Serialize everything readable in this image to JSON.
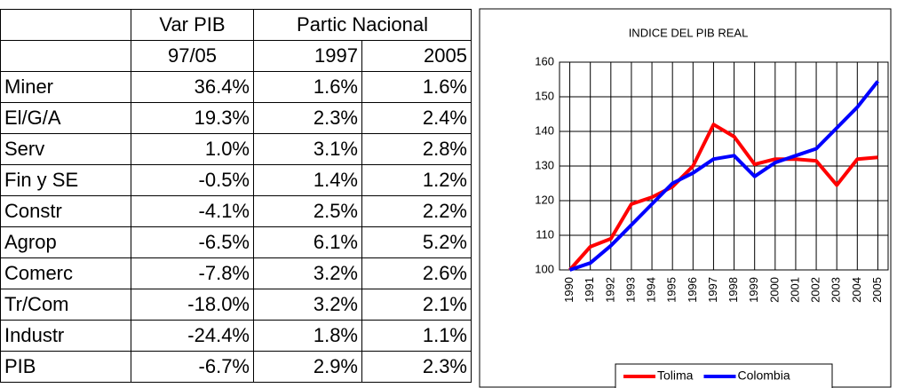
{
  "table": {
    "col_var": "Var PIB",
    "col_partic": "Partic Nacional",
    "sub": [
      "97/05",
      "1997",
      "2005"
    ],
    "rows": [
      [
        "Miner",
        "36.4%",
        "1.6%",
        "1.6%"
      ],
      [
        "El/G/A",
        "19.3%",
        "2.3%",
        "2.4%"
      ],
      [
        "Serv",
        "1.0%",
        "3.1%",
        "2.8%"
      ],
      [
        "Fin y SE",
        "-0.5%",
        "1.4%",
        "1.2%"
      ],
      [
        "Constr",
        "-4.1%",
        "2.5%",
        "2.2%"
      ],
      [
        "Agrop",
        "-6.5%",
        "6.1%",
        "5.2%"
      ],
      [
        "Comerc",
        "-7.8%",
        "3.2%",
        "2.6%"
      ],
      [
        "Tr/Com",
        "-18.0%",
        "3.2%",
        "2.1%"
      ],
      [
        "Industr",
        "-24.4%",
        "1.8%",
        "1.1%"
      ],
      [
        "PIB",
        "-6.7%",
        "2.9%",
        "2.3%"
      ]
    ]
  },
  "chart_data": {
    "type": "line",
    "title": "INDICE DEL PIB REAL",
    "categories": [
      "1990",
      "1991",
      "1992",
      "1993",
      "1994",
      "1995",
      "1996",
      "1997",
      "1998",
      "1999",
      "2000",
      "2001",
      "2002",
      "2003",
      "2004",
      "2005"
    ],
    "series": [
      {
        "name": "Tolima",
        "color": "#ff0000",
        "values": [
          100,
          106.7,
          109,
          119,
          121,
          124,
          130,
          142,
          138.5,
          130.5,
          132,
          132,
          131.5,
          124.5,
          132,
          132.5
        ]
      },
      {
        "name": "Colombia",
        "color": "#0000ff",
        "values": [
          100,
          102,
          107,
          113,
          119,
          125,
          128,
          132,
          133,
          127,
          131,
          133,
          135,
          141,
          147,
          154.5
        ]
      }
    ],
    "ylim": [
      100,
      160
    ],
    "yticks": [
      100,
      110,
      120,
      130,
      140,
      150,
      160
    ],
    "grid": true,
    "legend": "bottom"
  }
}
